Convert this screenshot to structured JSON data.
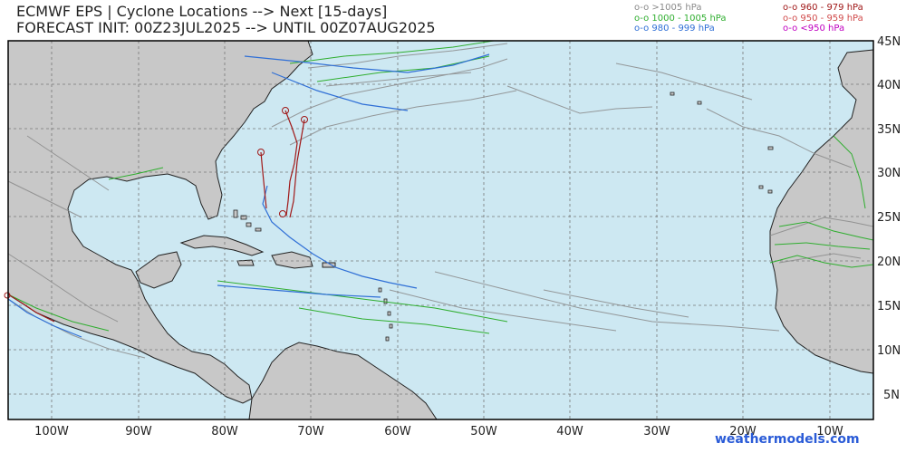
{
  "header": {
    "title_line1": "ECMWF EPS | Cyclone Locations --> Next [15-days]",
    "title_line2": "FORECAST INIT: 00Z23JUL2025 --> UNTIL 00Z07AUG2025"
  },
  "legend": [
    {
      "label": "o-o >1005 hPa",
      "color": "#8a8a8a"
    },
    {
      "label": "o-o 1000 - 1005 hPa",
      "color": "#2fae2f"
    },
    {
      "label": "o-o 980 - 999 hPa",
      "color": "#2f6fd6"
    },
    {
      "label": "o-o 960 - 979 hPa",
      "color": "#a01818"
    },
    {
      "label": "o-o 950 - 959 hPa",
      "color": "#d04a4a"
    },
    {
      "label": "o-o <950 hPa",
      "color": "#c000c0"
    }
  ],
  "map": {
    "ocean_color": "#cde8f2",
    "land_color": "#c8c8c8",
    "lat_labels": [
      "45N",
      "40N",
      "35N",
      "30N",
      "25N",
      "20N",
      "15N",
      "10N",
      "5N"
    ],
    "lon_labels": [
      "100W",
      "90W",
      "80W",
      "70W",
      "60W",
      "50W",
      "40W",
      "30W",
      "20W",
      "10W"
    ]
  },
  "credit": "weathermodels.com"
}
